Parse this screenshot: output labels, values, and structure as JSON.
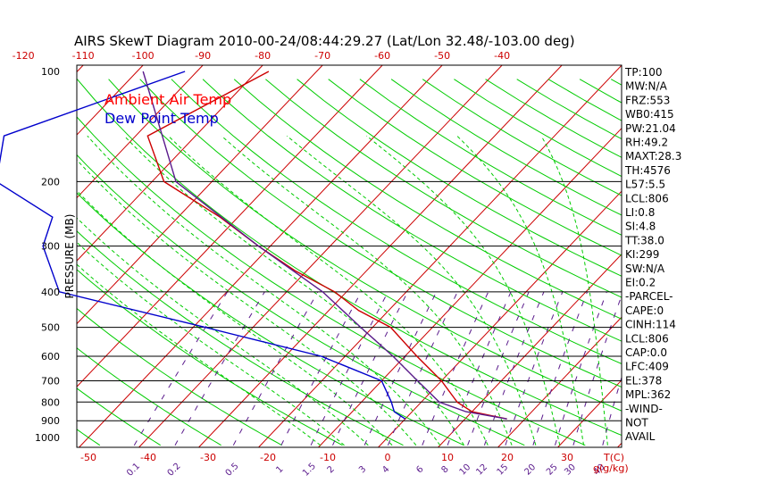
{
  "chart_data": {
    "type": "line",
    "title": "AIRS SkewT Diagram 2010-00-24/08:44:29.27 (Lat/Lon 32.48/-103.00 deg)",
    "ylabel": "PRESSURE (MB)",
    "xlabel": "T(C)",
    "mixing_ratio_unit": "g(g/kg)",
    "pressure_ticks": [
      100,
      200,
      300,
      400,
      500,
      600,
      700,
      800,
      900,
      1000
    ],
    "temp_ticks_top": [
      -120,
      -110,
      -100,
      -90,
      -80,
      -70,
      -60,
      -50,
      -40
    ],
    "temp_ticks_bottom": [
      -50,
      -40,
      -30,
      -20,
      -10,
      0,
      10,
      20,
      30
    ],
    "mixing_ratio_labels": [
      "0.1",
      "0.2",
      "0.5",
      "1",
      "1.5",
      "2",
      "3",
      "4",
      "6",
      "8",
      "10",
      "12",
      "15",
      "20",
      "25",
      "30",
      "40"
    ],
    "legend": [
      {
        "label": "Ambient Air Temp",
        "color": "#ff0000"
      },
      {
        "label": "Dew Point Temp",
        "color": "#0000cc"
      }
    ],
    "ylim": [
      1000,
      100
    ],
    "y_scale": "log",
    "series": [
      {
        "name": "Ambient Air Temp",
        "color": "#cc0000",
        "points": [
          {
            "p": 100,
            "t": -78
          },
          {
            "p": 150,
            "t": -88
          },
          {
            "p": 200,
            "t": -78
          },
          {
            "p": 250,
            "t": -63
          },
          {
            "p": 300,
            "t": -52
          },
          {
            "p": 350,
            "t": -42
          },
          {
            "p": 400,
            "t": -32
          },
          {
            "p": 450,
            "t": -25
          },
          {
            "p": 500,
            "t": -17
          },
          {
            "p": 600,
            "t": -8
          },
          {
            "p": 700,
            "t": 0
          },
          {
            "p": 800,
            "t": 6
          },
          {
            "p": 850,
            "t": 10
          },
          {
            "p": 890,
            "t": 17
          }
        ]
      },
      {
        "name": "Dew Point Temp",
        "color": "#0000cc",
        "points": [
          {
            "p": 100,
            "t": -92
          },
          {
            "p": 150,
            "t": -112
          },
          {
            "p": 200,
            "t": -106
          },
          {
            "p": 250,
            "t": -91
          },
          {
            "p": 300,
            "t": -88
          },
          {
            "p": 400,
            "t": -78
          },
          {
            "p": 500,
            "t": -48
          },
          {
            "p": 600,
            "t": -24
          },
          {
            "p": 700,
            "t": -10
          },
          {
            "p": 800,
            "t": -5
          },
          {
            "p": 850,
            "t": -3
          },
          {
            "p": 890,
            "t": 0
          }
        ]
      },
      {
        "name": "Parcel",
        "color": "#5a1a8c",
        "points": [
          {
            "p": 100,
            "t": -99
          },
          {
            "p": 200,
            "t": -76
          },
          {
            "p": 300,
            "t": -52
          },
          {
            "p": 400,
            "t": -34
          },
          {
            "p": 500,
            "t": -22
          },
          {
            "p": 600,
            "t": -12
          },
          {
            "p": 700,
            "t": -4
          },
          {
            "p": 800,
            "t": 3
          },
          {
            "p": 850,
            "t": 9
          },
          {
            "p": 890,
            "t": 17
          }
        ]
      }
    ],
    "indices": [
      "TP:100",
      "MW:N/A",
      "FRZ:553",
      "WB0:415",
      "PW:21.04",
      "RH:49.2",
      "MAXT:28.3",
      "TH:4576",
      "L57:5.5",
      "LCL:806",
      "LI:0.8",
      "SI:4.8",
      "TT:38.0",
      "KI:299",
      "SW:N/A",
      "EI:0.2",
      "-PARCEL-",
      "CAPE:0",
      "CINH:114",
      "LCL:806",
      "CAP:0.0",
      "LFC:409",
      "EL:378",
      "MPL:362",
      "-WIND-",
      "NOT",
      "AVAIL"
    ],
    "colors": {
      "isotherm": "#cc0000",
      "dry_adiabat": "#00cc00",
      "moist_adiabat": "#00cc00",
      "mixing_ratio": "#5a1a8c",
      "isobar": "#000000"
    }
  }
}
